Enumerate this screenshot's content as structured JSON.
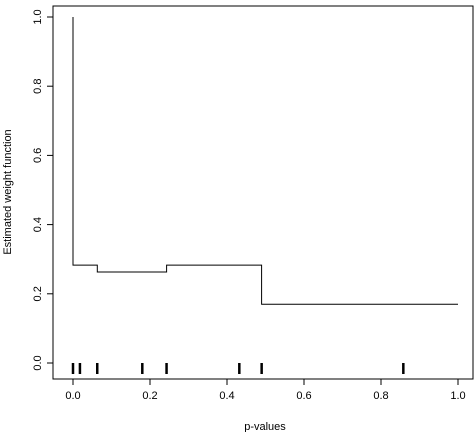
{
  "chart_data": {
    "type": "line",
    "title": "",
    "xlabel": "p-values",
    "ylabel": "Estimated weight function",
    "xlim": [
      0.0,
      1.0
    ],
    "ylim": [
      0.0,
      1.0
    ],
    "xticks": [
      0.0,
      0.2,
      0.4,
      0.6,
      0.8,
      1.0
    ],
    "yticks": [
      0.0,
      0.2,
      0.4,
      0.6,
      0.8,
      1.0
    ],
    "tick_labels_x": [
      "0.0",
      "0.2",
      "0.4",
      "0.6",
      "0.8",
      "1.0"
    ],
    "tick_labels_y": [
      "0.0",
      "0.2",
      "0.4",
      "0.6",
      "0.8",
      "1.0"
    ],
    "grid": false,
    "series": [
      {
        "type": "step",
        "points": [
          [
            0.0,
            1.0
          ],
          [
            0.0,
            0.283
          ],
          [
            0.063,
            0.283
          ],
          [
            0.063,
            0.263
          ],
          [
            0.243,
            0.263
          ],
          [
            0.243,
            0.283
          ],
          [
            0.49,
            0.283
          ],
          [
            0.49,
            0.17
          ],
          [
            1.0,
            0.17
          ]
        ]
      }
    ],
    "rug": [
      0.0,
      0.018,
      0.063,
      0.18,
      0.243,
      0.432,
      0.49,
      0.858
    ]
  }
}
